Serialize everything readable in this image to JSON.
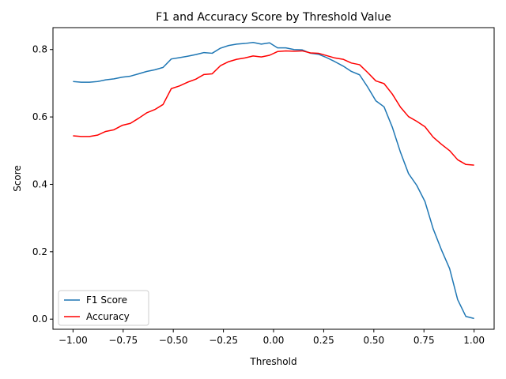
{
  "chart_data": {
    "type": "line",
    "title": "F1 and Accuracy Score by Threshold Value",
    "xlabel": "Threshold",
    "ylabel": "Score",
    "xlim": [
      -1.1,
      1.1
    ],
    "ylim": [
      -0.03,
      0.865
    ],
    "xticks": [
      -1.0,
      -0.75,
      -0.5,
      -0.25,
      0.0,
      0.25,
      0.5,
      0.75,
      1.0
    ],
    "xtick_labels": [
      "−1.00",
      "−0.75",
      "−0.50",
      "−0.25",
      "0.00",
      "0.25",
      "0.50",
      "0.75",
      "1.00"
    ],
    "yticks": [
      0.0,
      0.2,
      0.4,
      0.6,
      0.8
    ],
    "ytick_labels": [
      "0.0",
      "0.2",
      "0.4",
      "0.6",
      "0.8"
    ],
    "grid": false,
    "legend_position": "lower-left",
    "x": [
      -1.0,
      -0.959,
      -0.918,
      -0.878,
      -0.837,
      -0.796,
      -0.755,
      -0.714,
      -0.673,
      -0.633,
      -0.592,
      -0.551,
      -0.51,
      -0.469,
      -0.429,
      -0.388,
      -0.347,
      -0.306,
      -0.265,
      -0.224,
      -0.184,
      -0.143,
      -0.102,
      -0.061,
      -0.02,
      0.02,
      0.061,
      0.102,
      0.143,
      0.184,
      0.224,
      0.265,
      0.306,
      0.347,
      0.388,
      0.429,
      0.469,
      0.51,
      0.551,
      0.592,
      0.633,
      0.673,
      0.714,
      0.755,
      0.796,
      0.837,
      0.878,
      0.918,
      0.959,
      1.0
    ],
    "series": [
      {
        "name": "F1 Score",
        "color": "#1f77b4",
        "values": [
          0.705,
          0.703,
          0.703,
          0.705,
          0.71,
          0.713,
          0.718,
          0.721,
          0.728,
          0.735,
          0.74,
          0.747,
          0.772,
          0.776,
          0.78,
          0.785,
          0.791,
          0.789,
          0.804,
          0.812,
          0.816,
          0.818,
          0.821,
          0.816,
          0.82,
          0.805,
          0.805,
          0.8,
          0.799,
          0.789,
          0.786,
          0.776,
          0.764,
          0.751,
          0.735,
          0.725,
          0.689,
          0.648,
          0.63,
          0.57,
          0.495,
          0.432,
          0.397,
          0.349,
          0.268,
          0.206,
          0.15,
          0.058,
          0.008,
          0.002
        ]
      },
      {
        "name": "Accuracy",
        "color": "#ff0000",
        "values": [
          0.544,
          0.542,
          0.542,
          0.546,
          0.557,
          0.562,
          0.575,
          0.581,
          0.596,
          0.612,
          0.622,
          0.637,
          0.684,
          0.692,
          0.703,
          0.712,
          0.726,
          0.728,
          0.752,
          0.764,
          0.771,
          0.775,
          0.781,
          0.778,
          0.783,
          0.794,
          0.796,
          0.795,
          0.796,
          0.79,
          0.789,
          0.782,
          0.775,
          0.771,
          0.76,
          0.755,
          0.732,
          0.707,
          0.699,
          0.668,
          0.629,
          0.601,
          0.587,
          0.571,
          0.54,
          0.519,
          0.5,
          0.473,
          0.459,
          0.457
        ]
      }
    ]
  }
}
